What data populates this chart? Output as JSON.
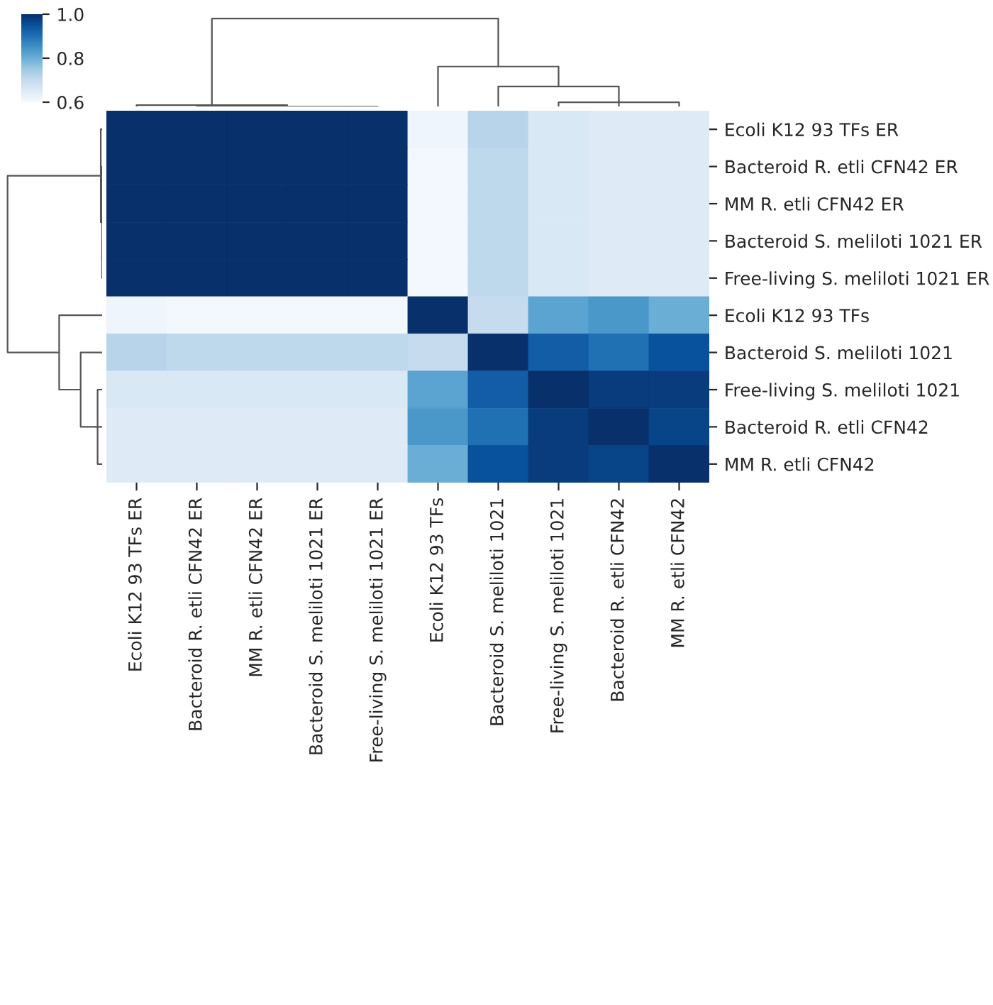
{
  "chart_data": {
    "type": "heatmap",
    "categories": [
      "Ecoli K12 93 TFs ER",
      "Bacteroid R. etli CFN42 ER",
      "MM R. etli CFN42 ER",
      "Bacteroid S. meliloti 1021 ER",
      "Free-living S. meliloti 1021 ER",
      "Ecoli K12 93 TFs",
      "Bacteroid S. meliloti 1021",
      "Free-living S. meliloti 1021",
      "Bacteroid R. etli CFN42",
      "MM R. etli CFN42"
    ],
    "y_categories": [
      "Ecoli K12 93 TFs ER",
      "Bacteroid R. etli CFN42 ER",
      "MM R. etli CFN42 ER",
      "Bacteroid S. meliloti 1021 ER",
      "Free-living S. meliloti 1021 ER",
      "Ecoli K12 93 TFs",
      "Bacteroid S. meliloti 1021",
      "Free-living S. meliloti 1021",
      "Bacteroid R. etli CFN42",
      "MM R. etli CFN42"
    ],
    "cells": [
      [
        1.0,
        1.0,
        1.0,
        1.0,
        1.0,
        0.62,
        0.72,
        0.66,
        0.65,
        0.65
      ],
      [
        1.0,
        1.0,
        1.0,
        1.0,
        1.0,
        0.61,
        0.71,
        0.66,
        0.65,
        0.65
      ],
      [
        1.0,
        1.0,
        1.0,
        1.0,
        1.0,
        0.61,
        0.71,
        0.66,
        0.65,
        0.65
      ],
      [
        1.0,
        1.0,
        1.0,
        1.0,
        1.0,
        0.61,
        0.71,
        0.66,
        0.65,
        0.65
      ],
      [
        1.0,
        1.0,
        1.0,
        1.0,
        1.0,
        0.61,
        0.71,
        0.66,
        0.65,
        0.65
      ],
      [
        0.62,
        0.61,
        0.61,
        0.61,
        0.61,
        1.0,
        0.7,
        0.82,
        0.84,
        0.8
      ],
      [
        0.72,
        0.71,
        0.71,
        0.71,
        0.71,
        0.7,
        1.0,
        0.93,
        0.9,
        0.95
      ],
      [
        0.66,
        0.66,
        0.66,
        0.66,
        0.66,
        0.82,
        0.93,
        1.0,
        0.98,
        0.98
      ],
      [
        0.65,
        0.65,
        0.65,
        0.65,
        0.65,
        0.84,
        0.9,
        0.98,
        1.0,
        0.97
      ],
      [
        0.65,
        0.65,
        0.65,
        0.65,
        0.65,
        0.8,
        0.95,
        0.98,
        0.97,
        1.0
      ]
    ],
    "clim": [
      0.6,
      1.0
    ],
    "cticks": [
      {
        "value": 0.6,
        "label": "0.6"
      },
      {
        "value": 0.8,
        "label": "0.8"
      },
      {
        "value": 1,
        "label": "1.0"
      }
    ]
  }
}
